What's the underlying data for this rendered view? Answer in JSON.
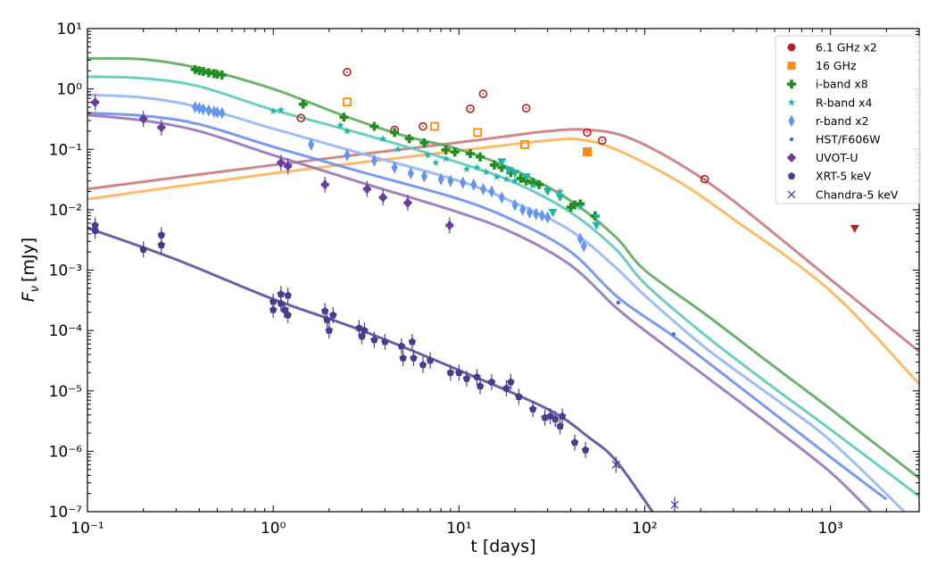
{
  "chart_data": {
    "type": "scatter",
    "title": "",
    "xlabel": "t [days]",
    "ylabel_symbol": "F",
    "ylabel_sub": "ν",
    "ylabel_unit": "[mJy]",
    "x_scale": "log",
    "y_scale": "log",
    "xlim": [
      0.1,
      3000
    ],
    "ylim": [
      1e-07,
      10
    ],
    "grid": false,
    "legend_position": "top-right",
    "x_ticks": [
      0.1,
      1,
      10,
      100,
      1000
    ],
    "x_tick_labels": [
      "10⁻¹",
      "10⁰",
      "10¹",
      "10²",
      "10³"
    ],
    "y_ticks": [
      1e-07,
      1e-06,
      1e-05,
      0.0001,
      0.001,
      0.01,
      0.1,
      1,
      10
    ],
    "y_tick_labels": [
      "10⁻⁷",
      "10⁻⁶",
      "10⁻⁵",
      "10⁻⁴",
      "10⁻³",
      "10⁻²",
      "10⁻¹",
      "10⁰",
      "10¹"
    ],
    "model_curves": [
      {
        "color": "#c77b80",
        "points": [
          [
            0.1,
            0.022
          ],
          [
            1,
            0.055
          ],
          [
            10,
            0.13
          ],
          [
            30,
            0.2
          ],
          [
            50,
            0.21
          ],
          [
            80,
            0.16
          ],
          [
            150,
            0.06
          ],
          [
            300,
            0.014
          ],
          [
            1000,
            0.0007
          ],
          [
            3000,
            4.5e-05
          ]
        ]
      },
      {
        "color": "#ffb45a",
        "points": [
          [
            0.1,
            0.015
          ],
          [
            1,
            0.04
          ],
          [
            10,
            0.095
          ],
          [
            30,
            0.14
          ],
          [
            45,
            0.145
          ],
          [
            70,
            0.1
          ],
          [
            150,
            0.03
          ],
          [
            300,
            0.007
          ],
          [
            1000,
            0.00045
          ],
          [
            3000,
            1.3e-05
          ]
        ]
      },
      {
        "color": "#5fa95f",
        "points": [
          [
            0.1,
            3.2
          ],
          [
            0.2,
            3.1
          ],
          [
            0.4,
            2.2
          ],
          [
            1,
            1.0
          ],
          [
            2.4,
            0.36
          ],
          [
            5,
            0.17
          ],
          [
            10,
            0.1
          ],
          [
            20,
            0.045
          ],
          [
            40,
            0.014
          ],
          [
            70,
            0.0035
          ],
          [
            100,
            0.001
          ],
          [
            215,
            0.00018
          ],
          [
            500,
            2.5e-05
          ],
          [
            1000,
            5e-06
          ],
          [
            3000,
            3.6e-07
          ]
        ]
      },
      {
        "color": "#5ec8b8",
        "points": [
          [
            0.1,
            1.6
          ],
          [
            0.2,
            1.5
          ],
          [
            0.4,
            1.1
          ],
          [
            1,
            0.45
          ],
          [
            3,
            0.18
          ],
          [
            10,
            0.06
          ],
          [
            20,
            0.028
          ],
          [
            40,
            0.009
          ],
          [
            70,
            0.0022
          ],
          [
            100,
            0.0006
          ],
          [
            215,
            8e-05
          ],
          [
            500,
            1.1e-05
          ],
          [
            1000,
            2.3e-06
          ],
          [
            3000,
            1.8e-07
          ]
        ]
      },
      {
        "color": "#93b6f5",
        "points": [
          [
            0.1,
            0.8
          ],
          [
            0.2,
            0.72
          ],
          [
            0.4,
            0.5
          ],
          [
            1,
            0.22
          ],
          [
            3,
            0.085
          ],
          [
            10,
            0.03
          ],
          [
            20,
            0.013
          ],
          [
            40,
            0.0045
          ],
          [
            70,
            0.0011
          ],
          [
            100,
            0.00038
          ],
          [
            215,
            5e-05
          ],
          [
            500,
            7.5e-06
          ],
          [
            1000,
            1.5e-06
          ],
          [
            2500,
            1e-07
          ]
        ]
      },
      {
        "color": "#6b8ff0",
        "points": [
          [
            0.1,
            0.4
          ],
          [
            0.2,
            0.36
          ],
          [
            0.4,
            0.26
          ],
          [
            1,
            0.11
          ],
          [
            3,
            0.042
          ],
          [
            10,
            0.015
          ],
          [
            20,
            0.0065
          ],
          [
            40,
            0.002
          ],
          [
            72,
            0.00035
          ],
          [
            143,
            8e-05
          ],
          [
            300,
            1.4e-05
          ],
          [
            1000,
            8e-07
          ],
          [
            2000,
            1.6e-07
          ]
        ]
      },
      {
        "color": "#9674b5",
        "points": [
          [
            0.1,
            0.37
          ],
          [
            0.2,
            0.3
          ],
          [
            0.4,
            0.2
          ],
          [
            1,
            0.08
          ],
          [
            3,
            0.028
          ],
          [
            10,
            0.009
          ],
          [
            20,
            0.004
          ],
          [
            40,
            0.0012
          ],
          [
            70,
            0.00024
          ],
          [
            100,
            0.0001
          ],
          [
            215,
            1.7e-05
          ],
          [
            500,
            2.4e-06
          ],
          [
            1000,
            4.5e-07
          ],
          [
            1650,
            1e-07
          ]
        ]
      },
      {
        "color": "#5a4f9c",
        "points": [
          [
            0.1,
            0.005
          ],
          [
            0.3,
            0.0015
          ],
          [
            1,
            0.00033
          ],
          [
            3,
            0.0001
          ],
          [
            10,
            2.2e-05
          ],
          [
            30,
            5e-06
          ],
          [
            50,
            1.7e-06
          ],
          [
            70,
            7e-07
          ],
          [
            110,
            1e-07
          ]
        ]
      }
    ],
    "series": [
      {
        "name": "6.1 GHz x2",
        "color": "#b22222",
        "marker": "circle-open",
        "points": [
          [
            1.41,
            0.33
          ],
          [
            2.5,
            1.9
          ],
          [
            4.5,
            0.21
          ],
          [
            6.4,
            0.24
          ],
          [
            11.5,
            0.47
          ],
          [
            13.5,
            0.83
          ],
          [
            23,
            0.48
          ],
          [
            49,
            0.19
          ],
          [
            59,
            0.14
          ],
          [
            210,
            0.032
          ]
        ]
      },
      {
        "name": "16 GHz",
        "color": "#ff8c00",
        "marker": "square",
        "points": [
          [
            2.5,
            0.61
          ],
          [
            7.4,
            0.24
          ],
          [
            12.6,
            0.19
          ],
          [
            22.6,
            0.12
          ],
          [
            49,
            0.091
          ]
        ]
      },
      {
        "name": "i-band x8",
        "color": "#228b22",
        "marker": "plus",
        "points": [
          [
            0.38,
            2.1
          ],
          [
            0.4,
            2.0
          ],
          [
            0.42,
            1.95
          ],
          [
            0.45,
            1.85
          ],
          [
            0.48,
            1.8
          ],
          [
            0.5,
            1.75
          ],
          [
            0.53,
            1.7
          ],
          [
            1.45,
            0.56
          ],
          [
            2.4,
            0.34
          ],
          [
            3.5,
            0.24
          ],
          [
            4.5,
            0.19
          ],
          [
            5.4,
            0.15
          ],
          [
            6.5,
            0.128
          ],
          [
            8.5,
            0.098
          ],
          [
            9.5,
            0.09
          ],
          [
            11.5,
            0.085
          ],
          [
            13,
            0.075
          ],
          [
            15.5,
            0.055
          ],
          [
            17,
            0.05
          ],
          [
            19,
            0.041
          ],
          [
            21.5,
            0.033
          ],
          [
            23,
            0.03
          ],
          [
            25,
            0.028
          ],
          [
            27,
            0.026
          ],
          [
            40,
            0.011
          ],
          [
            42,
            0.012
          ],
          [
            45,
            0.0125
          ],
          [
            54,
            0.0079
          ]
        ]
      },
      {
        "name": "R-band x4",
        "color": "#20b2aa",
        "marker": "star",
        "points": [
          [
            1.0,
            0.43
          ],
          [
            1.1,
            0.45
          ],
          [
            2.3,
            0.25
          ],
          [
            2.5,
            0.2
          ],
          [
            3.9,
            0.15
          ],
          [
            4.7,
            0.1
          ],
          [
            6.8,
            0.08
          ],
          [
            7.5,
            0.06
          ],
          [
            8.5,
            0.07
          ],
          [
            11,
            0.047
          ],
          [
            12.5,
            0.05
          ],
          [
            14,
            0.042
          ],
          [
            16,
            0.035
          ],
          [
            18,
            0.032
          ],
          [
            20,
            0.03
          ],
          [
            25,
            0.025
          ],
          [
            30,
            0.022
          ],
          [
            35,
            0.02
          ],
          [
            45,
            0.011
          ],
          [
            55,
            0.008
          ]
        ]
      },
      {
        "name": "r-band x2",
        "color": "#6495ed",
        "marker": "diamond",
        "points": [
          [
            0.38,
            0.5
          ],
          [
            0.4,
            0.48
          ],
          [
            0.42,
            0.46
          ],
          [
            0.45,
            0.44
          ],
          [
            0.48,
            0.42
          ],
          [
            0.5,
            0.41
          ],
          [
            0.53,
            0.4
          ],
          [
            1.6,
            0.12
          ],
          [
            2.5,
            0.08
          ],
          [
            3.5,
            0.065
          ],
          [
            4.5,
            0.05
          ],
          [
            5.5,
            0.04
          ],
          [
            6.5,
            0.036
          ],
          [
            8,
            0.032
          ],
          [
            9,
            0.03
          ],
          [
            10.5,
            0.028
          ],
          [
            12,
            0.026
          ],
          [
            13.5,
            0.022
          ],
          [
            15,
            0.02
          ],
          [
            17,
            0.016
          ],
          [
            20,
            0.012
          ],
          [
            22,
            0.01
          ],
          [
            24,
            0.009
          ],
          [
            26,
            0.0085
          ],
          [
            28,
            0.008
          ],
          [
            30,
            0.0075
          ],
          [
            45,
            0.0033
          ],
          [
            47,
            0.0025
          ]
        ]
      },
      {
        "name": "HST/F606W",
        "color": "#4169e1",
        "marker": "dot",
        "points": [
          [
            72,
            0.00029
          ],
          [
            143,
            8.7e-05
          ]
        ]
      },
      {
        "name": "UVOT-U",
        "color": "#6a3d9a",
        "marker": "thick-cross",
        "points": [
          [
            0.11,
            0.6
          ],
          [
            0.2,
            0.32
          ],
          [
            0.25,
            0.23
          ],
          [
            1.1,
            0.06
          ],
          [
            1.2,
            0.053
          ],
          [
            1.9,
            0.026
          ],
          [
            3.2,
            0.022
          ],
          [
            3.9,
            0.016
          ],
          [
            5.3,
            0.013
          ],
          [
            8.9,
            0.0055
          ]
        ]
      },
      {
        "name": "XRT-5 keV",
        "color": "#483d8b",
        "marker": "pentagon",
        "points": [
          [
            0.11,
            0.0055
          ],
          [
            0.11,
            0.0045
          ],
          [
            0.2,
            0.0022
          ],
          [
            0.25,
            0.0038
          ],
          [
            0.25,
            0.0026
          ],
          [
            1.0,
            0.0003
          ],
          [
            1.0,
            0.00022
          ],
          [
            1.1,
            0.0004
          ],
          [
            1.1,
            0.00028
          ],
          [
            1.15,
            0.00022
          ],
          [
            1.2,
            0.00038
          ],
          [
            1.2,
            0.00018
          ],
          [
            1.9,
            0.00021
          ],
          [
            1.95,
            0.00015
          ],
          [
            2.0,
            0.0001
          ],
          [
            2.1,
            0.00018
          ],
          [
            2.9,
            0.00011
          ],
          [
            3.0,
            8e-05
          ],
          [
            3.1,
            0.0001
          ],
          [
            3.5,
            7e-05
          ],
          [
            4.0,
            6.5e-05
          ],
          [
            4.9,
            5.5e-05
          ],
          [
            5.0,
            3.5e-05
          ],
          [
            5.6,
            6.5e-05
          ],
          [
            5.7,
            3.5e-05
          ],
          [
            6.4,
            2.7e-05
          ],
          [
            7,
            3.2e-05
          ],
          [
            9,
            2e-05
          ],
          [
            10,
            2e-05
          ],
          [
            11,
            1.6e-05
          ],
          [
            12.5,
            1.7e-05
          ],
          [
            13,
            1.2e-05
          ],
          [
            15,
            1.4e-05
          ],
          [
            18,
            1.1e-05
          ],
          [
            19,
            1.4e-05
          ],
          [
            21,
            8e-06
          ],
          [
            25,
            5e-06
          ],
          [
            29,
            3.6e-06
          ],
          [
            31,
            3.8e-06
          ],
          [
            33,
            3.4e-06
          ],
          [
            35,
            2.6e-06
          ],
          [
            36,
            3.8e-06
          ],
          [
            42,
            1.4e-06
          ],
          [
            48,
            1.05e-06
          ]
        ]
      },
      {
        "name": "Chandra-5 keV",
        "color": "#483d8b",
        "marker": "x",
        "points": [
          [
            70,
            6e-07
          ],
          [
            145,
            1.3e-07
          ]
        ]
      }
    ],
    "upper_limits": [
      {
        "color": "#20b2aa",
        "marker": "triangle-down",
        "points": [
          [
            17,
            0.062
          ],
          [
            18.5,
            0.045
          ],
          [
            20,
            0.04
          ],
          [
            23,
            0.035
          ],
          [
            30,
            0.02
          ],
          [
            35,
            0.016
          ],
          [
            55,
            0.0055
          ],
          [
            32,
            0.009
          ]
        ]
      },
      {
        "color": "#b22222",
        "marker": "triangle-down",
        "points": [
          [
            1350,
            0.0049
          ]
        ]
      }
    ]
  }
}
